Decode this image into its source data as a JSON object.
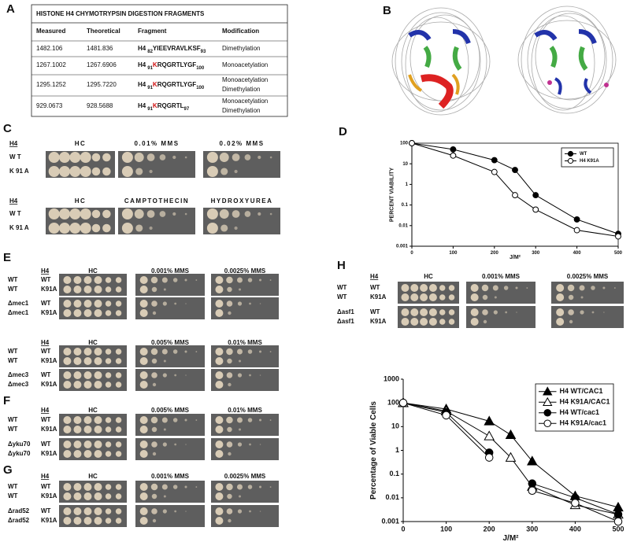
{
  "panels": {
    "a": "A",
    "b": "B",
    "c": "C",
    "d": "D",
    "e": "E",
    "f": "F",
    "g": "G",
    "h": "H"
  },
  "table": {
    "title": "HISTONE H4 CHYMOTRYPSIN DIGESTION FRAGMENTS",
    "header": [
      "Measured",
      "Theoretical",
      "Fragment",
      "Modification"
    ],
    "rows": [
      {
        "measured": "1482.106",
        "theoretical": "1481.836",
        "fragment": {
          "protein": "H4",
          "start": "82",
          "sequence": "YIEEVRAVLKSF",
          "end": "93"
        },
        "modification": [
          "Dimethylation"
        ]
      },
      {
        "measured": "1267.1002",
        "theoretical": "1267.6906",
        "fragment": {
          "protein": "H4",
          "start": "91",
          "modified": "K",
          "sequence": "RQGRTLYGF",
          "end": "100"
        },
        "modification": [
          "Monoacetylation"
        ]
      },
      {
        "measured": "1295.1252",
        "theoretical": "1295.7220",
        "fragment": {
          "protein": "H4",
          "start": "91",
          "modified": "K",
          "sequence": "RQGRTLYGF",
          "end": "100"
        },
        "modification": [
          "Monoacetylation",
          "Dimethylation"
        ]
      },
      {
        "measured": "929.0673",
        "theoretical": "928.5688",
        "fragment": {
          "protein": "H4",
          "start": "91",
          "modified": "K",
          "sequence": "RQGRTL",
          "end": "97"
        },
        "modification": [
          "Monoacetylation",
          "Dimethylation"
        ]
      }
    ]
  },
  "spot_assays": [
    {
      "h4": "H4",
      "conditions": [
        "HC",
        "0.01% MMS",
        "0.02% MMS"
      ],
      "rows": [
        [
          "W T"
        ],
        [
          "K 91 A"
        ]
      ]
    },
    {
      "h4": "H4",
      "conditions": [
        "HC",
        "CAMPTOTHECIN",
        "HYDROXYUREA"
      ],
      "rows": [
        [
          "W T"
        ],
        [
          "K 91 A"
        ]
      ]
    },
    {
      "h4": "H4",
      "conditions": [
        "HC",
        "0.001% MMS",
        "0.0025% MMS"
      ],
      "rows": [
        [
          "WT",
          "WT"
        ],
        [
          "WT",
          "K91A"
        ],
        [
          "Δmec1",
          "WT"
        ],
        [
          "Δmec1",
          "K91A"
        ]
      ]
    },
    {
      "h4": "H4",
      "conditions": [
        "HC",
        "0.005% MMS",
        "0.01% MMS"
      ],
      "rows": [
        [
          "WT",
          "WT"
        ],
        [
          "WT",
          "K91A"
        ],
        [
          "Δmec3",
          "WT"
        ],
        [
          "Δmec3",
          "K91A"
        ]
      ]
    },
    {
      "h4": "H4",
      "conditions": [
        "HC",
        "0.005% MMS",
        "0.01% MMS"
      ],
      "rows": [
        [
          "WT",
          "WT"
        ],
        [
          "WT",
          "K91A"
        ],
        [
          "Δyku70",
          "WT"
        ],
        [
          "Δyku70",
          "K91A"
        ]
      ]
    },
    {
      "h4": "H4",
      "conditions": [
        "HC",
        "0.001% MMS",
        "0.0025% MMS"
      ],
      "rows": [
        [
          "WT",
          "WT"
        ],
        [
          "WT",
          "K91A"
        ],
        [
          "Δrad52",
          "WT"
        ],
        [
          "Δrad52",
          "K91A"
        ]
      ]
    },
    {
      "h4": "H4",
      "conditions": [
        "HC",
        "0.001% MMS",
        "0.0025% MMS"
      ],
      "rows": [
        [
          "WT",
          "WT"
        ],
        [
          "WT",
          "K91A"
        ],
        [
          "Δasf1",
          "WT"
        ],
        [
          "Δasf1",
          "K91A"
        ]
      ]
    }
  ],
  "chart_data": [
    {
      "type": "line",
      "ylabel": "PERCENT VIABILITY",
      "xlabel": "J/M²",
      "ylog": true,
      "frame": true,
      "legend": "upper right",
      "x": [
        0,
        100,
        200,
        250,
        300,
        400,
        500
      ],
      "xlim": [
        0,
        500
      ],
      "xticks": [
        0,
        100,
        200,
        300,
        400,
        500
      ],
      "ylim": [
        0.001,
        100
      ],
      "yticks": [
        0.001,
        0.01,
        0.1,
        1,
        10,
        100
      ],
      "series": [
        {
          "name": "WT",
          "color": "#000000",
          "marker": "circle-filled",
          "values": [
            100,
            50,
            15,
            5,
            0.3,
            0.02,
            0.004
          ]
        },
        {
          "name": "H4 K91A",
          "color": "#000000",
          "marker": "circle-open",
          "values": [
            100,
            25,
            4,
            0.3,
            0.06,
            0.006,
            0.003
          ]
        }
      ]
    },
    {
      "type": "line",
      "ylabel": "Percentage of Viable Cells",
      "xlabel": "J/M²",
      "ylog": true,
      "frame": false,
      "legend": "upper right",
      "x": [
        0,
        100,
        200,
        250,
        300,
        400,
        500
      ],
      "xlim": [
        0,
        500
      ],
      "xticks": [
        0,
        100,
        200,
        300,
        400,
        500
      ],
      "ylim": [
        0.001,
        1000
      ],
      "yticks": [
        0.001,
        0.01,
        0.1,
        1,
        10,
        100,
        1000
      ],
      "series": [
        {
          "name": "H4 WT/CAC1",
          "color": "#000000",
          "marker": "triangle-filled",
          "values": [
            100,
            55,
            17,
            4.5,
            0.35,
            0.012,
            0.004
          ]
        },
        {
          "name": "H4 K91A/CAC1",
          "color": "#000000",
          "marker": "triangle-open",
          "values": [
            100,
            45,
            4,
            0.5,
            0.03,
            0.005,
            0.002
          ]
        },
        {
          "name": "H4 WT/cac1",
          "color": "#000000",
          "marker": "circle-filled",
          "values": [
            100,
            40,
            0.8,
            null,
            0.04,
            0.01,
            0.002
          ]
        },
        {
          "name": "H4 K91A/cac1",
          "color": "#000000",
          "marker": "circle-open",
          "values": [
            100,
            30,
            0.5,
            null,
            0.02,
            0.006,
            0.001
          ]
        }
      ]
    }
  ]
}
